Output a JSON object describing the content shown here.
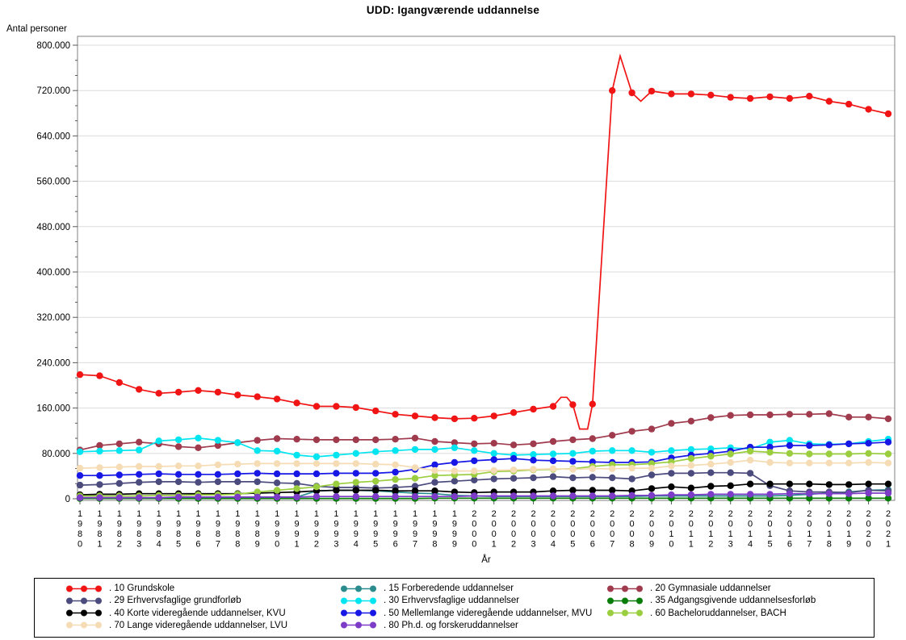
{
  "title": "UDD: Igangværende uddannelse",
  "chart_data": {
    "type": "line",
    "title": "UDD: Igangværende uddannelse",
    "xlabel": "År",
    "ylabel": "Antal personer",
    "ylim": [
      0,
      800000
    ],
    "ytick_step": 80000,
    "ytick_labels": [
      "0",
      "80.000",
      "160.000",
      "240.000",
      "320.000",
      "400.000",
      "480.000",
      "560.000",
      "640.000",
      "720.000",
      "800.000"
    ],
    "grid": "horizontal",
    "legend_position": "bottom",
    "colors": {
      "grid": "#dcdcdc",
      "frame": "#808080",
      "axis": "#595959"
    },
    "x": [
      1980,
      1981,
      1982,
      1983,
      1984,
      1985,
      1986,
      1987,
      1988,
      1989,
      1990,
      1991,
      1992,
      1993,
      1994,
      1995,
      1996,
      1997,
      1998,
      1999,
      2000,
      2001,
      2002,
      2003,
      2004,
      2005,
      2006,
      2007,
      2008,
      2009,
      2010,
      2011,
      2012,
      2013,
      2014,
      2015,
      2016,
      2017,
      2018,
      2019,
      2020,
      2021
    ],
    "series": [
      {
        "name": ". 10 Grundskole",
        "color": "#f01414",
        "values": [
          219000,
          217000,
          205000,
          193000,
          186000,
          188000,
          191000,
          188000,
          183000,
          180000,
          176000,
          169000,
          163000,
          163000,
          161000,
          155000,
          149000,
          146000,
          143000,
          141000,
          142000,
          146000,
          152000,
          158000,
          163000,
          166000,
          167000,
          720000,
          716000,
          719000,
          714000,
          714000,
          712000,
          708000,
          706000,
          709000,
          706000,
          710000,
          701000,
          696000,
          687000,
          679000
        ],
        "extra_vertices": [
          [
            2004.4,
            179000
          ],
          [
            2004.7,
            179000
          ],
          [
            2005.35,
            123000
          ],
          [
            2005.75,
            123000
          ],
          [
            2007.4,
            781000
          ],
          [
            2008.45,
            701000
          ]
        ]
      },
      {
        "name": ". 15 Forberedende uddannelser",
        "color": "#2a8c8c",
        "values": [
          1000,
          1000,
          1000,
          1000,
          1000,
          1000,
          1000,
          1000,
          2000,
          2000,
          2000,
          3000,
          14000,
          15000,
          15000,
          14000,
          12000,
          10000,
          9000,
          6000,
          5000,
          4000,
          4000,
          4000,
          4000,
          4000,
          4000,
          4000,
          4000,
          5000,
          5000,
          5000,
          5000,
          5000,
          5000,
          5000,
          6000,
          8000,
          10000,
          12000,
          15000,
          16000
        ]
      },
      {
        "name": ". 20 Gymnasiale uddannelser",
        "color": "#a03b4e",
        "values": [
          86000,
          94000,
          97000,
          100000,
          97000,
          92000,
          90000,
          94000,
          99000,
          103000,
          106000,
          105000,
          104000,
          104000,
          104000,
          104000,
          105000,
          107000,
          101000,
          99000,
          97000,
          98000,
          95000,
          97000,
          101000,
          104000,
          106000,
          112000,
          119000,
          123000,
          133000,
          137000,
          143000,
          147000,
          148000,
          148000,
          149000,
          149000,
          150000,
          144000,
          144000,
          141000
        ]
      },
      {
        "name": ". 29 Erhvervsfaglige grundforløb",
        "color": "#4b4b7e",
        "values": [
          24000,
          25000,
          27000,
          29000,
          30000,
          30000,
          29000,
          30000,
          30000,
          30000,
          28000,
          27000,
          22000,
          20000,
          20000,
          19000,
          20000,
          22000,
          29000,
          31000,
          33000,
          35000,
          36000,
          37000,
          39000,
          37000,
          38000,
          37000,
          35000,
          42000,
          45000,
          45000,
          46000,
          46000,
          45000,
          23000,
          14000,
          12000,
          12000,
          11000,
          15000,
          14000
        ]
      },
      {
        "name": ". 30 Erhvervsfaglige uddannelser",
        "color": "#00e5f0",
        "values": [
          83000,
          84000,
          85000,
          86000,
          102000,
          104000,
          107000,
          103000,
          99000,
          85000,
          84000,
          77000,
          74000,
          77000,
          80000,
          83000,
          85000,
          87000,
          87000,
          90000,
          85000,
          80000,
          77000,
          78000,
          79000,
          80000,
          84000,
          85000,
          85000,
          82000,
          85000,
          87000,
          88000,
          90000,
          88000,
          100000,
          103000,
          97000,
          96000,
          97000,
          101000,
          105000
        ]
      },
      {
        "name": ". 35 Adgangsgivende uddannelsesforløb",
        "color": "#077d07",
        "values": [
          500,
          500,
          500,
          500,
          500,
          500,
          500,
          500,
          500,
          500,
          500,
          500,
          500,
          500,
          500,
          500,
          500,
          500,
          1000,
          1000,
          1000,
          1000,
          1000,
          1000,
          1000,
          1000,
          1000,
          1000,
          1000,
          1000,
          1000,
          1000,
          1000,
          1000,
          1000,
          1000,
          1000,
          1000,
          1000,
          1000,
          1000,
          1000
        ]
      },
      {
        "name": ". 40 Korte videregående uddannelser, KVU",
        "color": "#000000",
        "values": [
          7000,
          8000,
          8000,
          9000,
          9000,
          9000,
          9000,
          9000,
          9000,
          10000,
          11000,
          12000,
          14000,
          15000,
          15000,
          15000,
          14000,
          14000,
          14000,
          12000,
          11000,
          12000,
          12000,
          12000,
          14000,
          15000,
          15000,
          15000,
          14000,
          18000,
          21000,
          19000,
          22000,
          23000,
          26000,
          26000,
          26000,
          26000,
          25000,
          25000,
          26000,
          26000
        ]
      },
      {
        "name": ". 50 Mellemlange videregående uddannelser, MVU",
        "color": "#1717e6",
        "values": [
          41000,
          41000,
          42000,
          43000,
          44000,
          43000,
          43000,
          43000,
          44000,
          45000,
          44000,
          44000,
          44000,
          45000,
          45000,
          45000,
          47000,
          52000,
          60000,
          64000,
          67000,
          69000,
          71000,
          68000,
          67000,
          66000,
          65000,
          64000,
          64000,
          65000,
          72000,
          77000,
          80000,
          84000,
          91000,
          91000,
          94000,
          94000,
          95000,
          97000,
          98000,
          100000
        ]
      },
      {
        "name": ". 60 Bacheloruddannelser, BACH",
        "color": "#9bce3f",
        "values": [
          5000,
          5000,
          5000,
          5000,
          6000,
          6000,
          7000,
          7000,
          8000,
          12000,
          15000,
          18000,
          21000,
          26000,
          29000,
          31000,
          34000,
          36000,
          41000,
          42000,
          43000,
          48000,
          49000,
          51000,
          52000,
          53000,
          57000,
          60000,
          60000,
          62000,
          65000,
          71000,
          75000,
          79000,
          84000,
          82000,
          80000,
          79000,
          79000,
          79000,
          80000,
          79000
        ]
      },
      {
        "name": ". 70 Lange videregående uddannelser, LVU",
        "color": "#f5dcb4",
        "values": [
          54000,
          55000,
          56000,
          57000,
          57000,
          58000,
          58000,
          60000,
          61000,
          62000,
          62000,
          62000,
          62000,
          62000,
          62000,
          61000,
          60000,
          55000,
          50000,
          49000,
          49000,
          50000,
          51000,
          52000,
          53000,
          52000,
          53000,
          53000,
          54000,
          54000,
          58000,
          59000,
          61000,
          64000,
          68000,
          64000,
          63000,
          63000,
          63000,
          63000,
          64000,
          63000
        ]
      },
      {
        "name": ". 80 Ph.d. og forskeruddannelser",
        "color": "#7d3cc8",
        "values": [
          2000,
          2000,
          2000,
          2000,
          2000,
          3000,
          3000,
          3000,
          3000,
          3000,
          3000,
          3000,
          4000,
          4000,
          4000,
          4000,
          4000,
          4000,
          4000,
          4000,
          5000,
          5000,
          5000,
          5000,
          5000,
          5000,
          5000,
          5000,
          6000,
          6000,
          7000,
          7000,
          8000,
          8000,
          8000,
          8000,
          9000,
          9000,
          9000,
          9000,
          10000,
          10000
        ]
      }
    ]
  }
}
